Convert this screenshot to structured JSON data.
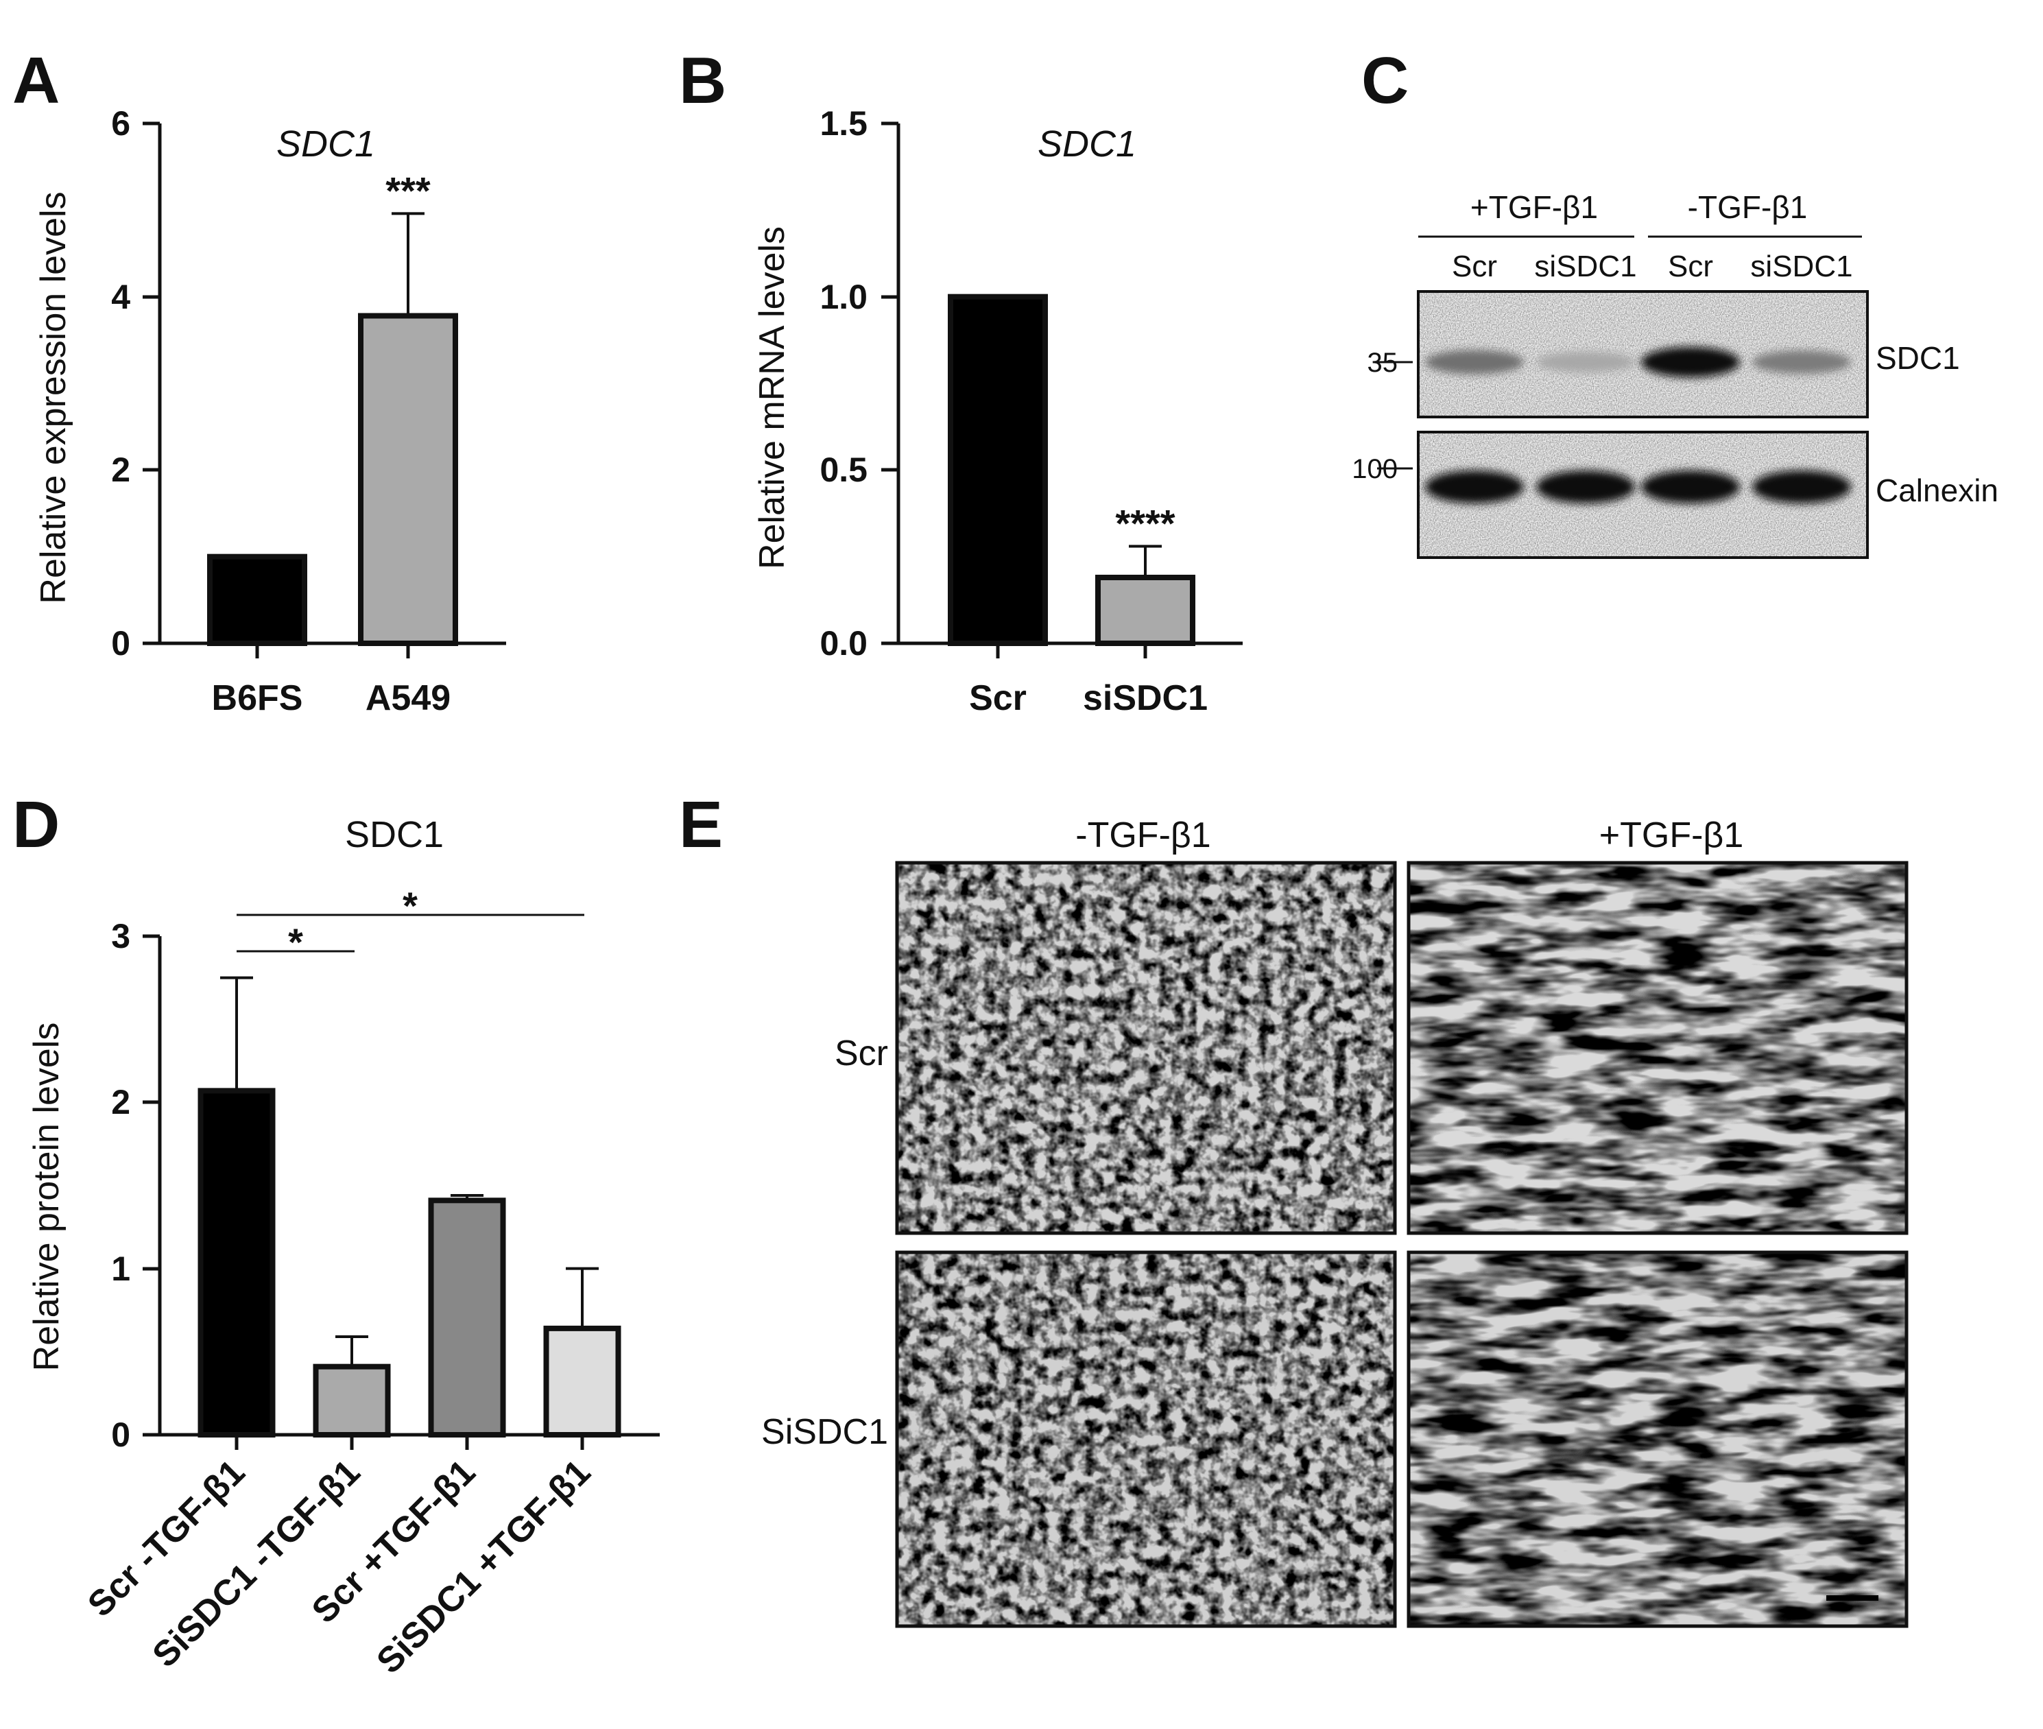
{
  "panels": {
    "A": {
      "label": "A",
      "chart_data": {
        "type": "bar",
        "title": "SDC1",
        "xlabel": "",
        "ylabel": "Relative expression levels",
        "ylim": [
          0,
          6
        ],
        "yticks": [
          "0",
          "2",
          "4",
          "6"
        ],
        "categories": [
          "B6FS",
          "A549"
        ],
        "values": [
          1.0,
          3.78
        ],
        "errors": [
          0,
          1.18
        ],
        "colors": [
          "#000000",
          "#aaaaaa"
        ],
        "annotations": [
          {
            "category": "A549",
            "text": "***"
          }
        ]
      }
    },
    "B": {
      "label": "B",
      "chart_data": {
        "type": "bar",
        "title": "SDC1",
        "xlabel": "",
        "ylabel": "Relative mRNA levels",
        "ylim": [
          0,
          1.5
        ],
        "yticks": [
          "0.0",
          "0.5",
          "1.0",
          "1.5"
        ],
        "categories": [
          "Scr",
          "siSDC1"
        ],
        "values": [
          1.0,
          0.19
        ],
        "errors": [
          0,
          0.09
        ],
        "colors": [
          "#000000",
          "#aaaaaa"
        ],
        "annotations": [
          {
            "category": "siSDC1",
            "text": "****"
          }
        ]
      }
    },
    "C": {
      "label": "C",
      "treatment_groups": [
        "+TGF-β1",
        "-TGF-β1"
      ],
      "lanes": [
        "Scr",
        "siSDC1",
        "Scr",
        "siSDC1"
      ],
      "proteins": [
        {
          "name": "SDC1",
          "mw": "35",
          "band_intensity": [
            0.55,
            0.3,
            1.0,
            0.5
          ]
        },
        {
          "name": "Calnexin",
          "mw": "100",
          "band_intensity": [
            1.0,
            1.0,
            1.0,
            1.0
          ]
        }
      ]
    },
    "D": {
      "label": "D",
      "chart_data": {
        "type": "bar",
        "title": "SDC1",
        "xlabel": "",
        "ylabel": "Relative protein levels",
        "ylim": [
          0,
          3
        ],
        "yticks": [
          "0",
          "1",
          "2",
          "3"
        ],
        "categories": [
          "Scr -TGF-β1",
          "SiSDC1 -TGF-β1",
          "Scr +TGF-β1",
          "SiSDC1 +TGF-β1"
        ],
        "values": [
          2.07,
          0.41,
          1.41,
          0.64
        ],
        "errors": [
          0.68,
          0.18,
          0.03,
          0.36
        ],
        "colors": [
          "#000000",
          "#aaaaaa",
          "#888888",
          "#dddddd"
        ],
        "significance": [
          {
            "from": 0,
            "to": 1,
            "text": "*"
          },
          {
            "from": 0,
            "to": 3,
            "text": "*"
          }
        ]
      }
    },
    "E": {
      "label": "E",
      "columns": [
        "-TGF-β1",
        "+TGF-β1"
      ],
      "rows": [
        "Scr",
        "SiSDC1"
      ],
      "scale_bar": "scale-bar"
    }
  }
}
